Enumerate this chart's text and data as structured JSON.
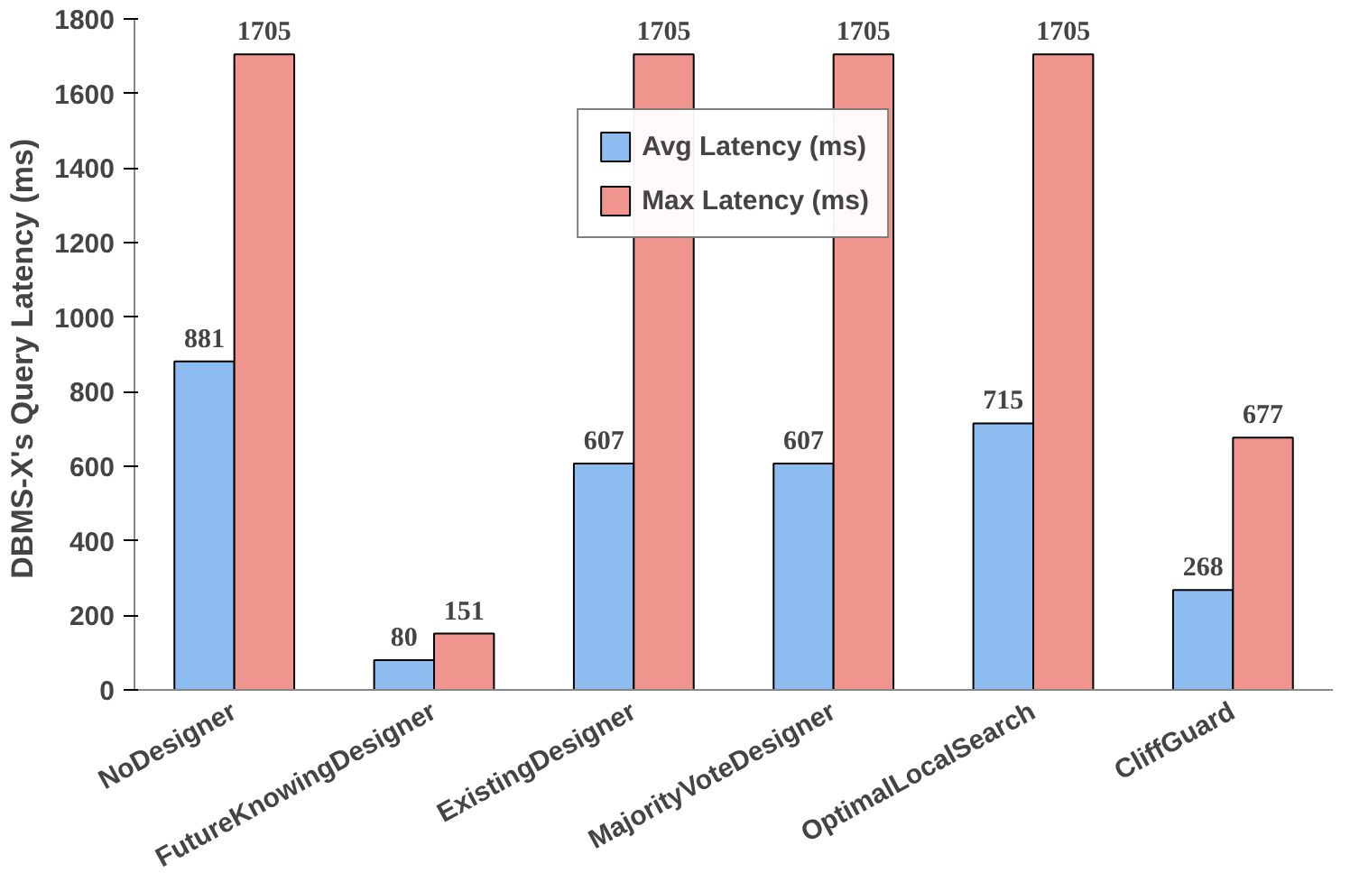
{
  "chart_data": {
    "type": "bar",
    "ylabel": "DBMS-X's Query Latency  (ms)",
    "categories": [
      "NoDesigner",
      "FutureKnowingDesigner",
      "ExistingDesigner",
      "MajorityVoteDesigner",
      "OptimalLocalSearch",
      "CliffGuard"
    ],
    "series": [
      {
        "name": "Avg Latency (ms)",
        "color": "#8cbcf0",
        "values": [
          881,
          80,
          607,
          607,
          715,
          268
        ]
      },
      {
        "name": "Max Latency (ms)",
        "color": "#f0958e",
        "values": [
          1705,
          151,
          1705,
          1705,
          1705,
          677
        ]
      }
    ],
    "ylim": [
      0,
      1800
    ],
    "yticks": [
      0,
      200,
      400,
      600,
      800,
      1000,
      1200,
      1400,
      1600,
      1800
    ],
    "data_labels": true,
    "legend": "top",
    "grid": false
  }
}
